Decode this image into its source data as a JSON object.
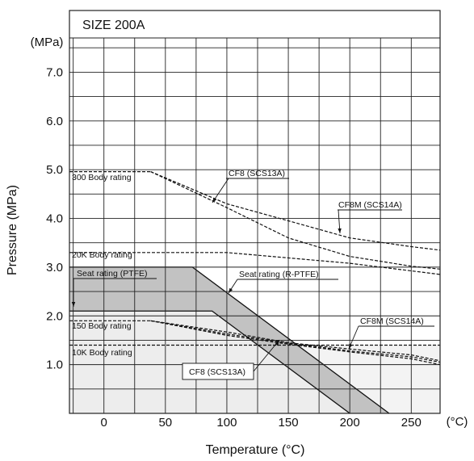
{
  "chart_data": {
    "type": "line",
    "title": "SIZE 200A",
    "xlabel": "Temperature (°C)",
    "ylabel": "Pressure (MPa)",
    "x_unit": "(°C)",
    "y_unit": "(MPa)",
    "xlim": [
      -29,
      275
    ],
    "ylim": [
      0,
      7.6
    ],
    "x_ticks": [
      0,
      50,
      100,
      150,
      200,
      250
    ],
    "x_tick_labels": [
      "0",
      "50",
      "100",
      "150",
      "200",
      "250"
    ],
    "y_ticks": [
      1.0,
      2.0,
      3.0,
      4.0,
      5.0,
      6.0,
      7.0
    ],
    "y_tick_labels": [
      "1.0",
      "2.0",
      "3.0",
      "4.0",
      "5.0",
      "6.0",
      "7.0"
    ],
    "grid": true,
    "areas": [
      {
        "name": "Seat rating (PTFE)",
        "points": [
          [
            -29,
            2.1
          ],
          [
            88,
            2.1
          ],
          [
            200,
            0
          ]
        ]
      },
      {
        "name": "Seat rating (R-PTFE)",
        "points": [
          [
            -29,
            3.0
          ],
          [
            72,
            3.0
          ],
          [
            232,
            0
          ]
        ]
      }
    ],
    "series": [
      {
        "name": "300 Body rating",
        "style": "dashed",
        "points": [
          [
            -29,
            4.96
          ],
          [
            38,
            4.96
          ]
        ]
      },
      {
        "name": "CF8 (SCS13A)",
        "style": "dashed",
        "points": [
          [
            38,
            4.96
          ],
          [
            100,
            4.3
          ],
          [
            150,
            3.95
          ],
          [
            200,
            3.6
          ],
          [
            250,
            3.42
          ],
          [
            275,
            3.35
          ]
        ]
      },
      {
        "name": "CF8M (SCS14A)",
        "style": "dashed",
        "points": [
          [
            38,
            4.96
          ],
          [
            100,
            4.22
          ],
          [
            150,
            3.6
          ],
          [
            200,
            3.22
          ],
          [
            250,
            3.02
          ],
          [
            275,
            2.96
          ]
        ]
      },
      {
        "name": "20K Body rating",
        "style": "dashed",
        "points": [
          [
            -29,
            3.3
          ],
          [
            100,
            3.3
          ],
          [
            200,
            3.08
          ],
          [
            275,
            2.85
          ]
        ]
      },
      {
        "name": "150 Body rating",
        "style": "dashed",
        "points": [
          [
            -29,
            1.9
          ],
          [
            38,
            1.9
          ],
          [
            100,
            1.67
          ],
          [
            150,
            1.45
          ],
          [
            200,
            1.32
          ],
          [
            250,
            1.2
          ],
          [
            275,
            1.08
          ]
        ]
      },
      {
        "name": "CF8M (SCS14A)",
        "style": "dashed",
        "points": [
          [
            38,
            1.9
          ],
          [
            100,
            1.6
          ],
          [
            150,
            1.42
          ],
          [
            200,
            1.26
          ],
          [
            250,
            1.12
          ],
          [
            275,
            1.0
          ]
        ]
      },
      {
        "name": "CF8 (SCS13A)",
        "style": "dashed",
        "points": [
          [
            38,
            1.9
          ],
          [
            100,
            1.63
          ],
          [
            150,
            1.44
          ],
          [
            200,
            1.28
          ],
          [
            250,
            1.16
          ],
          [
            275,
            1.05
          ]
        ]
      },
      {
        "name": "10K Body rating",
        "style": "dashed",
        "points": [
          [
            -29,
            1.4
          ],
          [
            275,
            1.4
          ]
        ]
      }
    ],
    "annotations": [
      {
        "text": "300 Body rating",
        "box": false
      },
      {
        "text": "CF8 (SCS13A)",
        "box": false
      },
      {
        "text": "CF8M (SCS14A)",
        "box": false
      },
      {
        "text": "20K Body rating",
        "box": false
      },
      {
        "text": "Seat rating (PTFE)",
        "box": false
      },
      {
        "text": "Seat rating (R-PTFE)",
        "box": false
      },
      {
        "text": "150 Body rating",
        "box": false
      },
      {
        "text": "CF8M (SCS14A)",
        "box": false
      },
      {
        "text": "10K Body rating",
        "box": false
      },
      {
        "text": "CF8 (SCS13A)",
        "box": true
      }
    ],
    "colors": {
      "grid": "#222222",
      "line": "#111111",
      "ptfe_fill": "#ededed",
      "rptfe_fill": "#c2c2c2",
      "lower_band": "#f3f3f3"
    }
  }
}
